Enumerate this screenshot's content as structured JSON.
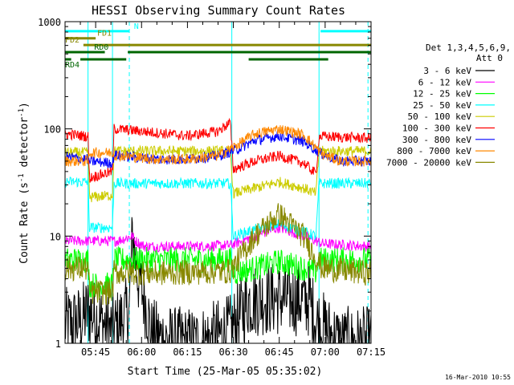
{
  "chart_data": {
    "type": "line",
    "title": "HESSI Observing Summary Count Rates",
    "xlabel": "Start Time (25-Mar-05 05:35:02)",
    "ylabel_main": "Count Rate (s",
    "ylabel_sup1": "-1",
    "ylabel_mid": " detector",
    "ylabel_sup2": "-1",
    "ylabel_end": ")",
    "x_unit": "minutes after 05:35",
    "xlim": [
      0,
      100
    ],
    "ylim": [
      1,
      1000
    ],
    "yscale": "log",
    "x_tick_labels": [
      {
        "label": "05:45",
        "value": 10
      },
      {
        "label": "06:00",
        "value": 25
      },
      {
        "label": "06:15",
        "value": 40
      },
      {
        "label": "06:30",
        "value": 55
      },
      {
        "label": "06:45",
        "value": 70
      },
      {
        "label": "07:00",
        "value": 85
      },
      {
        "label": "07:15",
        "value": 100
      }
    ],
    "y_tick_labels": [
      {
        "label": "1",
        "value": 1
      },
      {
        "label": "10",
        "value": 10
      },
      {
        "label": "100",
        "value": 100
      },
      {
        "label": "1000",
        "value": 1000
      }
    ],
    "legend_header": [
      "Det 1,3,4,5,6,9,",
      "Att 0"
    ],
    "legend_position": "right",
    "series": [
      {
        "name": "3 - 6 keV",
        "color": "#000000",
        "values": [
          [
            0,
            1.5
          ],
          [
            5,
            1.6
          ],
          [
            7.5,
            2.0
          ],
          [
            15.5,
            1.3
          ],
          [
            21,
            2.0
          ],
          [
            22,
            10
          ],
          [
            24,
            4
          ],
          [
            27,
            2
          ],
          [
            28,
            1.2
          ],
          [
            36,
            1
          ],
          [
            44,
            1
          ],
          [
            54,
            1.3
          ],
          [
            60,
            2.5
          ],
          [
            64,
            2.6
          ],
          [
            70,
            2.6
          ],
          [
            74,
            2.6
          ],
          [
            80,
            2.5
          ],
          [
            82,
            1.6
          ],
          [
            90,
            1
          ],
          [
            100,
            1
          ]
        ]
      },
      {
        "name": "6 - 12 keV",
        "color": "#ff00ff",
        "values": [
          [
            0,
            9
          ],
          [
            7.5,
            9
          ],
          [
            15.5,
            9
          ],
          [
            17,
            9
          ],
          [
            22,
            10
          ],
          [
            23,
            9
          ],
          [
            26,
            8
          ],
          [
            40,
            8
          ],
          [
            54,
            8.2
          ],
          [
            60,
            9.5
          ],
          [
            66,
            11
          ],
          [
            70,
            12
          ],
          [
            74,
            11
          ],
          [
            80,
            9.6
          ],
          [
            84,
            8.5
          ],
          [
            90,
            8.3
          ],
          [
            100,
            8
          ]
        ]
      },
      {
        "name": "12 - 25 keV",
        "color": "#00ff00",
        "values": [
          [
            0,
            6
          ],
          [
            7.5,
            6
          ],
          [
            8,
            3.5
          ],
          [
            15.5,
            3.5
          ],
          [
            16,
            6
          ],
          [
            22,
            6
          ],
          [
            40,
            6
          ],
          [
            54,
            6
          ],
          [
            55,
            4.5
          ],
          [
            62,
            5
          ],
          [
            70,
            5.8
          ],
          [
            78,
            5
          ],
          [
            82,
            4.6
          ],
          [
            83,
            6
          ],
          [
            100,
            6
          ]
        ]
      },
      {
        "name": "25 - 50 keV",
        "color": "#00ffff",
        "values": [
          [
            0,
            32
          ],
          [
            7.5,
            32
          ],
          [
            8,
            12
          ],
          [
            15.5,
            12
          ],
          [
            16,
            31
          ],
          [
            30,
            31
          ],
          [
            54,
            31
          ],
          [
            55,
            10
          ],
          [
            62,
            11.5
          ],
          [
            70,
            13
          ],
          [
            78,
            11
          ],
          [
            82,
            10
          ],
          [
            83,
            31
          ],
          [
            100,
            31
          ]
        ]
      },
      {
        "name": "50 - 100 keV",
        "color": "#cccc00",
        "values": [
          [
            0,
            60
          ],
          [
            7.5,
            60
          ],
          [
            8,
            23
          ],
          [
            15.5,
            24
          ],
          [
            16,
            62
          ],
          [
            30,
            62
          ],
          [
            54,
            62
          ],
          [
            55,
            25
          ],
          [
            62,
            28
          ],
          [
            70,
            32
          ],
          [
            78,
            28
          ],
          [
            82,
            25
          ],
          [
            83,
            62
          ],
          [
            100,
            62
          ]
        ]
      },
      {
        "name": "100 - 300 keV",
        "color": "#ff0000",
        "values": [
          [
            0,
            90
          ],
          [
            7.5,
            85
          ],
          [
            8,
            35
          ],
          [
            15.5,
            40
          ],
          [
            16,
            100
          ],
          [
            25,
            95
          ],
          [
            40,
            86
          ],
          [
            50,
            95
          ],
          [
            54,
            115
          ],
          [
            55,
            42
          ],
          [
            62,
            50
          ],
          [
            70,
            56
          ],
          [
            78,
            48
          ],
          [
            82,
            38
          ],
          [
            83,
            85
          ],
          [
            100,
            82
          ]
        ]
      },
      {
        "name": "300 - 800 keV",
        "color": "#0000ff",
        "values": [
          [
            0,
            55
          ],
          [
            7.5,
            52
          ],
          [
            8,
            50
          ],
          [
            15.5,
            48
          ],
          [
            16,
            57
          ],
          [
            30,
            52
          ],
          [
            40,
            52
          ],
          [
            50,
            56
          ],
          [
            56,
            64
          ],
          [
            62,
            78
          ],
          [
            70,
            86
          ],
          [
            78,
            76
          ],
          [
            84,
            58
          ],
          [
            90,
            50
          ],
          [
            100,
            50
          ]
        ]
      },
      {
        "name": "800 - 7000 keV",
        "color": "#ff8800",
        "values": [
          [
            0,
            50
          ],
          [
            7.5,
            50
          ],
          [
            8,
            60
          ],
          [
            15.5,
            60
          ],
          [
            16,
            57
          ],
          [
            30,
            52
          ],
          [
            40,
            52
          ],
          [
            50,
            56
          ],
          [
            56,
            70
          ],
          [
            62,
            90
          ],
          [
            70,
            100
          ],
          [
            78,
            88
          ],
          [
            84,
            58
          ],
          [
            90,
            50
          ],
          [
            100,
            50
          ]
        ]
      },
      {
        "name": "7000 - 20000 keV",
        "color": "#888800",
        "values": [
          [
            0,
            5
          ],
          [
            7.5,
            5
          ],
          [
            8,
            3
          ],
          [
            15.5,
            3
          ],
          [
            16,
            4.6
          ],
          [
            30,
            4.5
          ],
          [
            54,
            4.7
          ],
          [
            62,
            10
          ],
          [
            70,
            16
          ],
          [
            78,
            10
          ],
          [
            84,
            5
          ],
          [
            90,
            4.8
          ],
          [
            100,
            4.5
          ]
        ]
      }
    ],
    "flags": [
      {
        "name": "N",
        "color": "#00ffff",
        "segments": [
          [
            0,
            21
          ],
          [
            83.5,
            100
          ]
        ],
        "level": 815
      },
      {
        "name": "FD1",
        "color": "#888800",
        "segments": [
          [
            0,
            10
          ]
        ],
        "level": 700
      },
      {
        "name": "FD2",
        "color": "#888800",
        "segments": [
          [
            6,
            100
          ]
        ],
        "level": 605
      },
      {
        "name": "RD0",
        "color": "#006600",
        "segments": [
          [
            0,
            13
          ],
          [
            20.5,
            100
          ]
        ],
        "level": 520
      },
      {
        "name": "RD4",
        "color": "#006600",
        "segments": [
          [
            0,
            2
          ],
          [
            5,
            20
          ],
          [
            60,
            86
          ]
        ],
        "level": 445
      }
    ],
    "vlines": [
      {
        "x": 7.5,
        "color": "#00ffff",
        "dash": false
      },
      {
        "x": 15.5,
        "color": "#00ffff",
        "dash": false
      },
      {
        "x": 21,
        "color": "#00ffff",
        "dash": true
      },
      {
        "x": 54.5,
        "color": "#00ffff",
        "dash": false
      },
      {
        "x": 83,
        "color": "#00ffff",
        "dash": false
      },
      {
        "x": 99,
        "color": "#00ffff",
        "dash": true
      }
    ]
  },
  "timestamp": "16-Mar-2010 10:55"
}
